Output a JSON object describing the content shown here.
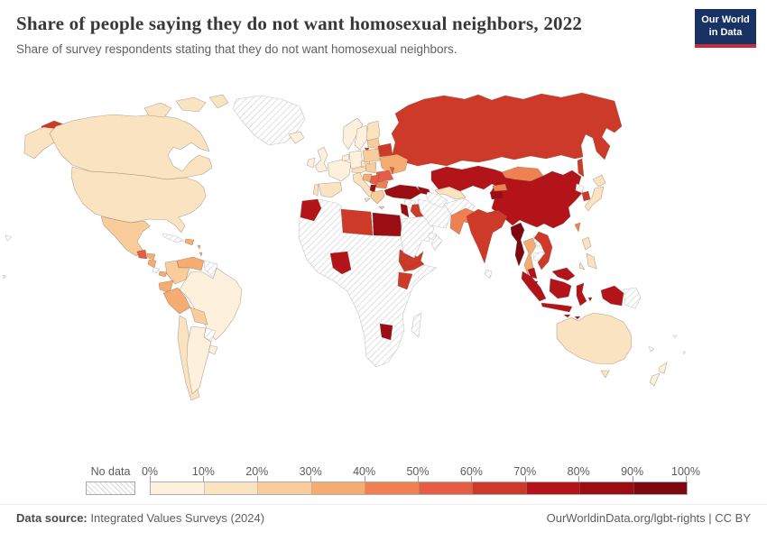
{
  "header": {
    "title": "Share of people saying they do not want homosexual neighbors, 2022",
    "subtitle": "Share of survey respondents stating that they do not want homosexual neighbors.",
    "logo_line1": "Our World",
    "logo_line2": "in Data",
    "logo_bg_color": "#183263",
    "logo_accent_color": "#C62C3C"
  },
  "footer": {
    "datasource_label": "Data source:",
    "datasource": "Integrated Values Surveys (2024)",
    "credit": "OurWorldinData.org/lgbt-rights | CC BY"
  },
  "chart_data": {
    "type": "choropleth",
    "title": "Share of people saying they do not want homosexual neighbors, 2022",
    "unit": "% of survey respondents",
    "legend": {
      "no_data_label": "No data",
      "tick_labels": [
        "0%",
        "10%",
        "20%",
        "30%",
        "40%",
        "50%",
        "60%",
        "70%",
        "80%",
        "90%",
        "100%"
      ],
      "bins": [
        {
          "range": "0-10%",
          "color": "#FDF1DE"
        },
        {
          "range": "10-20%",
          "color": "#FAE3C0"
        },
        {
          "range": "20-30%",
          "color": "#F8CC9B"
        },
        {
          "range": "30-40%",
          "color": "#F5AC72"
        },
        {
          "range": "40-50%",
          "color": "#EF8052"
        },
        {
          "range": "50-60%",
          "color": "#E55D45"
        },
        {
          "range": "60-70%",
          "color": "#CE3A2A"
        },
        {
          "range": "70-80%",
          "color": "#B2141A"
        },
        {
          "range": "80-90%",
          "color": "#990D13"
        },
        {
          "range": "90-100%",
          "color": "#7C0911"
        }
      ]
    },
    "countries": {
      "united-states": {
        "name": "United States",
        "value": "10-20%",
        "bin": 1
      },
      "canada": {
        "name": "Canada",
        "value": "10-20%",
        "bin": 1
      },
      "greenland": {
        "name": "Greenland",
        "value": "no data",
        "bin": null
      },
      "iceland": {
        "name": "Iceland",
        "value": "0-10%",
        "bin": 0
      },
      "mexico": {
        "name": "Mexico",
        "value": "20-30%",
        "bin": 2
      },
      "guatemala": {
        "name": "Guatemala",
        "value": "50-60%",
        "bin": 5
      },
      "honduras": {
        "name": "Honduras",
        "value": "30-40%",
        "bin": 3
      },
      "nicaragua": {
        "name": "Nicaragua",
        "value": "30-40%",
        "bin": 3
      },
      "costa-rica": {
        "name": "Costa Rica",
        "value": "no data",
        "bin": null
      },
      "panama": {
        "name": "Panama",
        "value": "30-40%",
        "bin": 3
      },
      "cuba": {
        "name": "Cuba",
        "value": "no data",
        "bin": null
      },
      "hispaniola": {
        "name": "Dominican Republic / Haiti",
        "value": "30-40%",
        "bin": 3
      },
      "caribbean": {
        "name": "Lesser Antilles",
        "value": "30-40%",
        "bin": 3
      },
      "venezuela": {
        "name": "Venezuela",
        "value": "30-40%",
        "bin": 3
      },
      "colombia": {
        "name": "Colombia",
        "value": "20-30%",
        "bin": 2
      },
      "guyana-suriname": {
        "name": "Guyana / Suriname",
        "value": "no data",
        "bin": null
      },
      "ecuador": {
        "name": "Ecuador",
        "value": "30-40%",
        "bin": 3
      },
      "peru": {
        "name": "Peru",
        "value": "30-40%",
        "bin": 3
      },
      "brazil": {
        "name": "Brazil",
        "value": "0-10%",
        "bin": 0
      },
      "bolivia": {
        "name": "Bolivia",
        "value": "20-30%",
        "bin": 2
      },
      "paraguay": {
        "name": "Paraguay",
        "value": "no data",
        "bin": null
      },
      "chile": {
        "name": "Chile",
        "value": "10-20%",
        "bin": 1
      },
      "argentina": {
        "name": "Argentina",
        "value": "0-10%",
        "bin": 0
      },
      "uruguay": {
        "name": "Uruguay",
        "value": "0-10%",
        "bin": 0
      },
      "united-kingdom": {
        "name": "United Kingdom",
        "value": "0-10%",
        "bin": 0
      },
      "ireland": {
        "name": "Ireland",
        "value": "0-10%",
        "bin": 0
      },
      "france": {
        "name": "France",
        "value": "0-10%",
        "bin": 0
      },
      "netherlands-belgium": {
        "name": "Netherlands / Belgium",
        "value": "0-10%",
        "bin": 0
      },
      "germany": {
        "name": "Germany",
        "value": "0-10%",
        "bin": 0
      },
      "norway": {
        "name": "Norway",
        "value": "0-10%",
        "bin": 0
      },
      "sweden": {
        "name": "Sweden",
        "value": "0-10%",
        "bin": 0
      },
      "finland": {
        "name": "Finland",
        "value": "10-20%",
        "bin": 1
      },
      "denmark": {
        "name": "Denmark",
        "value": "10-20%",
        "bin": 1
      },
      "spain": {
        "name": "Spain",
        "value": "10-20%",
        "bin": 1
      },
      "portugal": {
        "name": "Portugal",
        "value": "10-20%",
        "bin": 1
      },
      "italy": {
        "name": "Italy",
        "value": "10-20%",
        "bin": 1
      },
      "czechia": {
        "name": "Czechia",
        "value": "10-20%",
        "bin": 1
      },
      "austria-switzerland": {
        "name": "Austria / Switzerland",
        "value": "10-20%",
        "bin": 1
      },
      "poland": {
        "name": "Poland",
        "value": "20-30%",
        "bin": 2
      },
      "baltic-states": {
        "name": "Baltic states",
        "value": "20-30%",
        "bin": 2
      },
      "hungary-slovakia": {
        "name": "Hungary / Slovakia",
        "value": "20-30%",
        "bin": 2
      },
      "greece": {
        "name": "Greece",
        "value": "20-30%",
        "bin": 2
      },
      "ukraine": {
        "name": "Ukraine",
        "value": "30-40%",
        "bin": 3
      },
      "bosnia-croatia": {
        "name": "Bosnia / Croatia",
        "value": "30-40%",
        "bin": 3
      },
      "bulgaria": {
        "name": "Bulgaria",
        "value": "40-50%",
        "bin": 4
      },
      "romania": {
        "name": "Romania",
        "value": "50-60%",
        "bin": 5
      },
      "moldova": {
        "name": "Moldova",
        "value": "50-60%",
        "bin": 5
      },
      "serbia": {
        "name": "Serbia",
        "value": "50-60%",
        "bin": 5
      },
      "albania-north-macedonia": {
        "name": "Albania / North Macedonia",
        "value": "80-90%",
        "bin": 8
      },
      "belarus": {
        "name": "Belarus",
        "value": "60-70%",
        "bin": 6
      },
      "russia": {
        "name": "Russia",
        "value": "60-70%",
        "bin": 6
      },
      "kazakhstan": {
        "name": "Kazakhstan",
        "value": "70-80%",
        "bin": 7
      },
      "uzbekistan": {
        "name": "Uzbekistan",
        "value": "10-20%",
        "bin": 1
      },
      "turkmenistan": {
        "name": "Turkmenistan",
        "value": "no data",
        "bin": null
      },
      "kyrgyzstan": {
        "name": "Kyrgyzstan",
        "value": "40-50%",
        "bin": 4
      },
      "tajikistan": {
        "name": "Tajikistan",
        "value": "80-90%",
        "bin": 8
      },
      "afghanistan": {
        "name": "Afghanistan",
        "value": "no data",
        "bin": null
      },
      "iran": {
        "name": "Iran",
        "value": "no data",
        "bin": null
      },
      "pakistan": {
        "name": "Pakistan",
        "value": "40-50%",
        "bin": 4
      },
      "india": {
        "name": "India",
        "value": "60-70%",
        "bin": 6
      },
      "sri-lanka": {
        "name": "Sri Lanka",
        "value": "no data",
        "bin": null
      },
      "mongolia": {
        "name": "Mongolia",
        "value": "40-50%",
        "bin": 4
      },
      "china": {
        "name": "China",
        "value": "70-80%",
        "bin": 7
      },
      "myanmar": {
        "name": "Myanmar",
        "value": "90-100%",
        "bin": 9
      },
      "thailand": {
        "name": "Thailand",
        "value": "30-40%",
        "bin": 3
      },
      "laos": {
        "name": "Laos",
        "value": "no data",
        "bin": null
      },
      "cambodia": {
        "name": "Cambodia",
        "value": "no data",
        "bin": null
      },
      "vietnam": {
        "name": "Vietnam",
        "value": "60-70%",
        "bin": 6
      },
      "malaysia": {
        "name": "Malaysia",
        "value": "70-80%",
        "bin": 7
      },
      "singapore": {
        "name": "Singapore",
        "value": "90-100%",
        "bin": 9
      },
      "indonesia": {
        "name": "Indonesia",
        "value": "70-80%",
        "bin": 7
      },
      "papua-new-guinea": {
        "name": "Papua New Guinea",
        "value": "no data",
        "bin": null
      },
      "philippines": {
        "name": "Philippines",
        "value": "10-20%",
        "bin": 1
      },
      "taiwan": {
        "name": "Taiwan",
        "value": "40-50%",
        "bin": 4
      },
      "south-korea": {
        "name": "South Korea",
        "value": "60-70%",
        "bin": 6
      },
      "north-korea": {
        "name": "North Korea",
        "value": "no data",
        "bin": null
      },
      "japan": {
        "name": "Japan",
        "value": "10-20%",
        "bin": 1
      },
      "turkey": {
        "name": "Turkey",
        "value": "80-90%",
        "bin": 8
      },
      "azerbaijan-armenia": {
        "name": "Azerbaijan / Armenia",
        "value": "80-90%",
        "bin": 8
      },
      "syria": {
        "name": "Syria",
        "value": "no data",
        "bin": null
      },
      "iraq": {
        "name": "Iraq",
        "value": "60-70%",
        "bin": 6
      },
      "jordan": {
        "name": "Jordan",
        "value": "80-90%",
        "bin": 8
      },
      "saudi-arabia": {
        "name": "Saudi Arabia",
        "value": "no data",
        "bin": null
      },
      "uae-qatar": {
        "name": "UAE / Qatar",
        "value": "no data",
        "bin": null
      },
      "oman": {
        "name": "Oman",
        "value": "no data",
        "bin": null
      },
      "yemen": {
        "name": "Yemen",
        "value": "60-70%",
        "bin": 6
      },
      "morocco": {
        "name": "Morocco",
        "value": "70-80%",
        "bin": 7
      },
      "libya": {
        "name": "Libya",
        "value": "60-70%",
        "bin": 6
      },
      "egypt": {
        "name": "Egypt",
        "value": "80-90%",
        "bin": 8
      },
      "nigeria": {
        "name": "Nigeria",
        "value": "70-80%",
        "bin": 7
      },
      "ethiopia": {
        "name": "Ethiopia",
        "value": "60-70%",
        "bin": 6
      },
      "kenya": {
        "name": "Kenya",
        "value": "60-70%",
        "bin": 6
      },
      "zimbabwe": {
        "name": "Zimbabwe",
        "value": "80-90%",
        "bin": 8
      },
      "madagascar": {
        "name": "Madagascar",
        "value": "no data",
        "bin": null
      },
      "africa-other": {
        "name": "Africa (other)",
        "value": "no data",
        "bin": null
      },
      "australia": {
        "name": "Australia",
        "value": "10-20%",
        "bin": 1
      },
      "new-zealand": {
        "name": "New Zealand",
        "value": "0-10%",
        "bin": 0
      },
      "fiji": {
        "name": "Fiji",
        "value": "no data",
        "bin": null
      },
      "new-caledonia": {
        "name": "New Caledonia",
        "value": "no data",
        "bin": null
      },
      "pacific-islands": {
        "name": "Pacific islands",
        "value": "no data",
        "bin": null
      }
    }
  }
}
